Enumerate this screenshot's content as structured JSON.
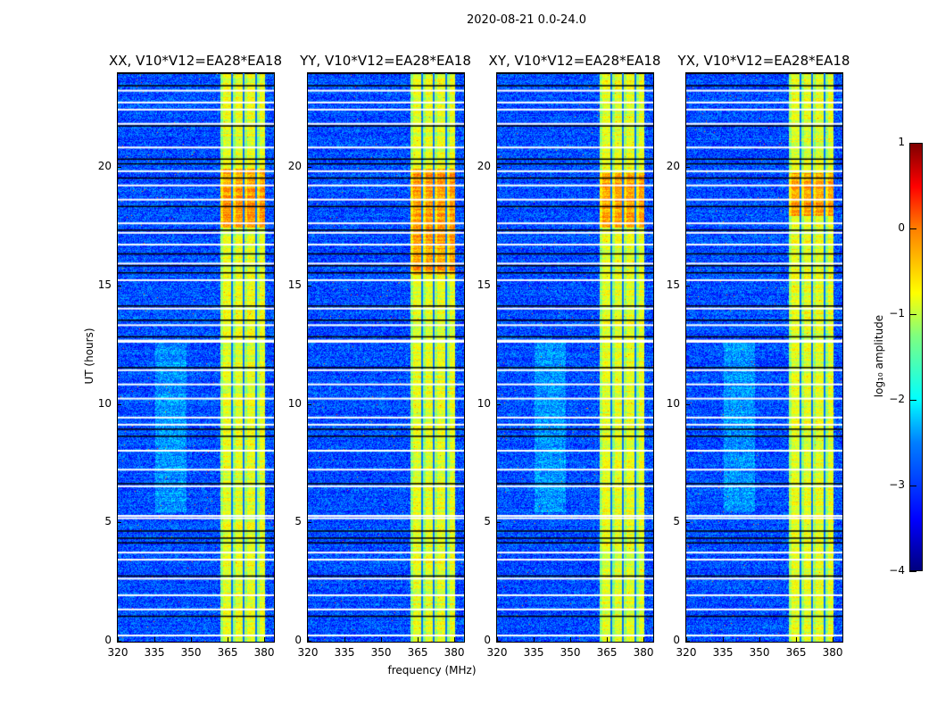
{
  "chart_data": {
    "type": "heatmap",
    "title": "2020-08-21 0.0-24.0",
    "panels": [
      {
        "title": "XX, V10*V12=EA28*EA18",
        "bright_hours": [
          17.5,
          20.0
        ]
      },
      {
        "title": "YY, V10*V12=EA28*EA18",
        "bright_hours": [
          15.5,
          20.0
        ]
      },
      {
        "title": "XY, V10*V12=EA28*EA18",
        "bright_hours": [
          17.5,
          19.8
        ]
      },
      {
        "title": "YX, V10*V12=EA28*EA18",
        "bright_hours": [
          18.0,
          19.8
        ]
      }
    ],
    "xlabel": "frequency (MHz)",
    "ylabel": "UT (hours)",
    "xlim": [
      320,
      384
    ],
    "ylim": [
      0,
      24
    ],
    "xticks": [
      "320",
      "335",
      "350",
      "365",
      "380"
    ],
    "yticks": [
      "0",
      "5",
      "10",
      "15",
      "20"
    ],
    "background_log_amp": -3.0,
    "band_MHz": [
      362,
      380
    ],
    "band_log_amp": -1.0,
    "band_gaps_MHz": [
      366.5,
      371.5,
      376.5
    ],
    "flagged_white_hours": [
      0.3,
      1.4,
      2.0,
      2.7,
      3.5,
      3.8,
      5.25,
      5.35,
      6.6,
      7.3,
      8.1,
      9.2,
      9.5,
      10.3,
      10.9,
      11.5,
      12.7,
      12.75,
      13.4,
      14.1,
      15.3,
      16.0,
      16.8,
      17.3,
      17.7,
      18.7,
      19.3,
      19.9,
      20.9,
      21.9,
      22.5,
      22.8,
      23.3
    ],
    "flagged_black_hours": [
      1.1,
      2.8,
      4.2,
      4.4,
      4.7,
      6.7,
      8.7,
      9.0,
      11.6,
      12.9,
      13.6,
      14.2,
      15.6,
      15.9,
      16.4,
      17.4,
      18.4,
      19.6,
      20.2,
      20.4,
      21.8,
      23.5
    ],
    "colorbar": {
      "label": "log₁₀ amplitude",
      "range": [
        -4,
        1
      ],
      "ticks": [
        "1",
        "0",
        "−1",
        "−2",
        "−3",
        "−4"
      ],
      "colormap": "jet"
    }
  }
}
